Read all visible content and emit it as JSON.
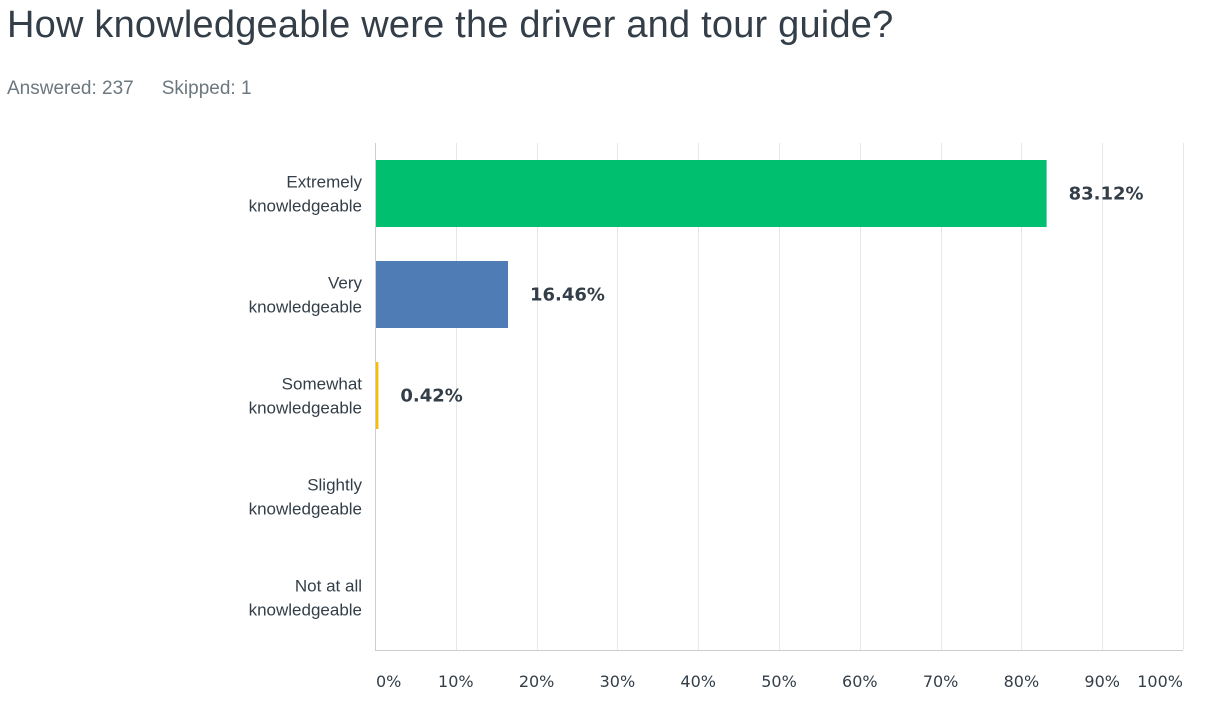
{
  "question": {
    "title": "How knowledgeable were the driver and tour guide?",
    "answered": "Answered: 237",
    "skipped": "Skipped: 1"
  },
  "chart_data": {
    "type": "bar",
    "orientation": "horizontal",
    "categories": [
      [
        "Extremely",
        "knowledgeable"
      ],
      [
        "Very",
        "knowledgeable"
      ],
      [
        "Somewhat",
        "knowledgeable"
      ],
      [
        "Slightly",
        "knowledgeable"
      ],
      [
        "Not at all",
        "knowledgeable"
      ]
    ],
    "values": [
      83.12,
      16.46,
      0.42,
      0,
      0
    ],
    "value_labels": [
      "83.12%",
      "16.46%",
      "0.42%",
      "",
      ""
    ],
    "colors": [
      "#00bf6f",
      "#507cb6",
      "#f9be00",
      "#6bc8cd",
      "#ff8b4f"
    ],
    "xlim": [
      0,
      100
    ],
    "xticks": [
      0,
      10,
      20,
      30,
      40,
      50,
      60,
      70,
      80,
      90,
      100
    ],
    "xtick_labels": [
      "0%",
      "10%",
      "20%",
      "30%",
      "40%",
      "50%",
      "60%",
      "70%",
      "80%",
      "90%",
      "100%"
    ],
    "grid": true
  }
}
